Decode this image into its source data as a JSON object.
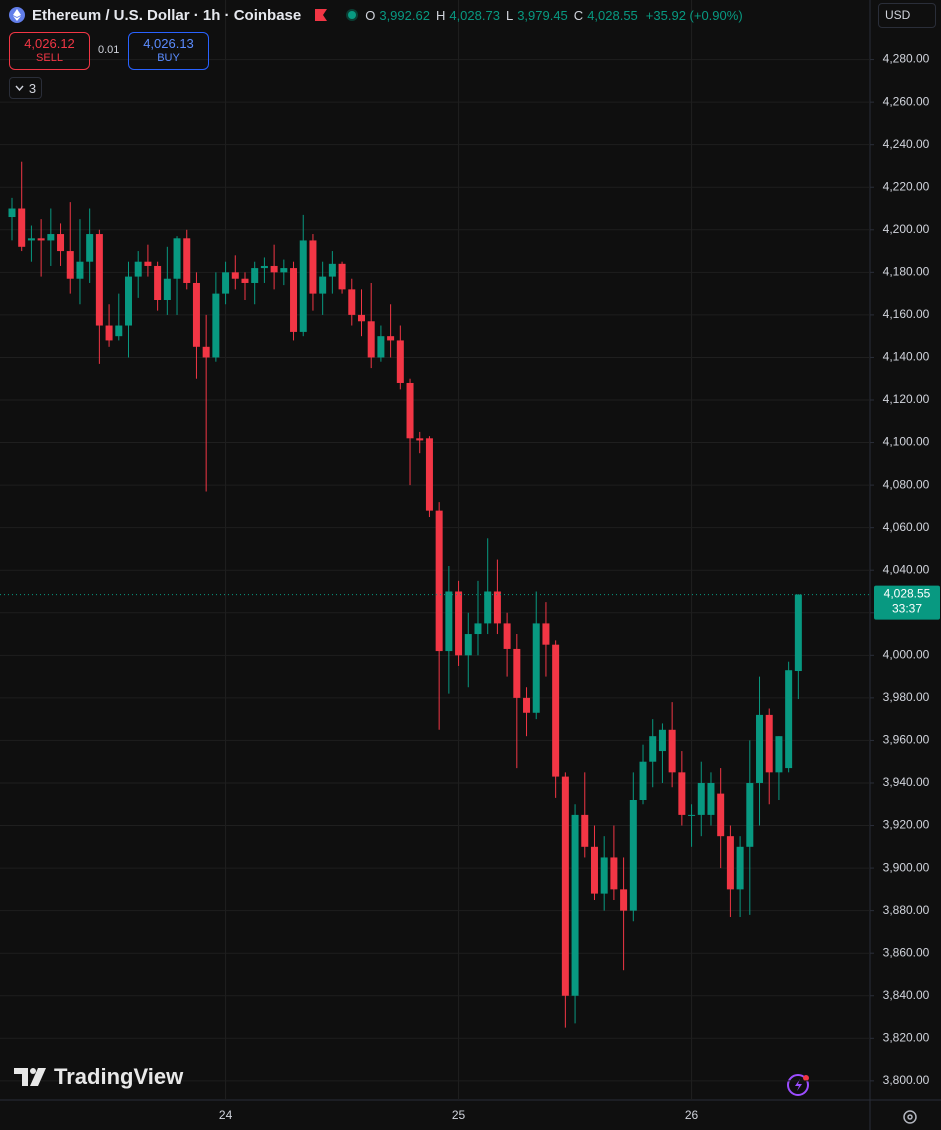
{
  "header": {
    "symbol": "Ethereum / U.S. Dollar · 1h · Coinbase",
    "ohlc": [
      {
        "key": "O",
        "value": "3,992.62"
      },
      {
        "key": "H",
        "value": "4,028.73"
      },
      {
        "key": "L",
        "value": "3,979.45"
      },
      {
        "key": "C",
        "value": "4,028.55"
      }
    ],
    "change": "+35.92 (+0.90%)"
  },
  "trade": {
    "sell_price": "4,026.12",
    "sell": "SELL",
    "quantity": "0.01",
    "buy_price": "4,026.13",
    "buy": "BUY"
  },
  "indicators_count": "3",
  "currency": "USD",
  "brand": "TradingView",
  "chart_data": {
    "type": "candlestick",
    "categories": [
      null,
      null,
      null,
      null,
      null,
      null,
      null,
      null,
      null,
      null,
      null,
      null,
      null,
      null,
      null,
      null,
      null,
      null,
      null,
      null,
      null,
      null,
      "24",
      null,
      null,
      null,
      null,
      null,
      null,
      null,
      null,
      null,
      null,
      null,
      null,
      null,
      null,
      null,
      null,
      null,
      null,
      null,
      null,
      null,
      null,
      null,
      "25",
      null,
      null,
      null,
      null,
      null,
      null,
      null,
      null,
      null,
      null,
      null,
      null,
      null,
      null,
      null,
      null,
      null,
      null,
      null,
      null,
      null,
      null,
      null,
      "26",
      null,
      null,
      null,
      null,
      null,
      null,
      null,
      null,
      null,
      null,
      null
    ],
    "open": [
      4206,
      4210,
      4195,
      4196,
      4195,
      4198,
      4190,
      4177,
      4185,
      4198,
      4155,
      4150,
      4155,
      4178,
      4185,
      4183,
      4167,
      4177,
      4196,
      4175,
      4145,
      4140,
      4170,
      4180,
      4177,
      4175,
      4182,
      4183,
      4180,
      4182,
      4152,
      4195,
      4170,
      4178,
      4184,
      4172,
      4160,
      4157,
      4140,
      4150,
      4148,
      4128,
      4102,
      4102,
      4068,
      4002,
      4030,
      4000,
      4010,
      4015,
      4030,
      4015,
      4003,
      3980,
      3973,
      4015,
      4005,
      3943,
      3840,
      3925,
      3910,
      3888,
      3905,
      3890,
      3880,
      3932,
      3950,
      3955,
      3965,
      3945,
      3925,
      3925,
      3925,
      3935,
      3915,
      3890,
      3910,
      3940,
      3972,
      3945,
      3947,
      3992.62
    ],
    "high": [
      4215,
      4232,
      4202,
      4205,
      4210,
      4203,
      4213,
      4205,
      4210,
      4200,
      4165,
      4170,
      4185,
      4190,
      4193,
      4185,
      4192,
      4197,
      4200,
      4180,
      4160,
      4180,
      4185,
      4188,
      4180,
      4185,
      4187,
      4193,
      4186,
      4185,
      4207,
      4198,
      4185,
      4190,
      4185,
      4177,
      4172,
      4175,
      4155,
      4165,
      4155,
      4130,
      4105,
      4103,
      4072,
      4042,
      4035,
      4020,
      4035,
      4055,
      4045,
      4020,
      4010,
      3985,
      4030,
      4025,
      4007,
      3945,
      3930,
      3945,
      3920,
      3915,
      3920,
      3905,
      3945,
      3958,
      3970,
      3968,
      3978,
      3955,
      3930,
      3950,
      3945,
      3947,
      3920,
      3915,
      3960,
      3990,
      3975,
      3962,
      3997,
      4028.73
    ],
    "low": [
      4195,
      4190,
      4185,
      4178,
      4183,
      4183,
      4170,
      4165,
      4175,
      4137,
      4145,
      4148,
      4140,
      4168,
      4178,
      4162,
      4160,
      4160,
      4172,
      4130,
      4077,
      4138,
      4165,
      4172,
      4167,
      4165,
      4175,
      4172,
      4174,
      4148,
      4150,
      4162,
      4160,
      4170,
      4170,
      4155,
      4150,
      4135,
      4138,
      4140,
      4125,
      4080,
      4095,
      4065,
      3965,
      3982,
      3995,
      3985,
      4000,
      4010,
      4010,
      3990,
      3947,
      3962,
      3970,
      3990,
      3933,
      3825,
      3827,
      3905,
      3885,
      3880,
      3885,
      3852,
      3875,
      3930,
      3938,
      3940,
      3938,
      3920,
      3910,
      3915,
      3920,
      3900,
      3877,
      3877,
      3878,
      3920,
      3930,
      3932,
      3945,
      3979.45
    ],
    "close": [
      4210,
      4192,
      4196,
      4195,
      4198,
      4190,
      4177,
      4185,
      4198,
      4155,
      4148,
      4155,
      4178,
      4185,
      4183,
      4167,
      4177,
      4196,
      4175,
      4145,
      4140,
      4170,
      4180,
      4177,
      4175,
      4182,
      4183,
      4180,
      4182,
      4152,
      4195,
      4170,
      4178,
      4184,
      4172,
      4160,
      4157,
      4140,
      4150,
      4148,
      4128,
      4102,
      4101,
      4068,
      4002,
      4030,
      4000,
      4010,
      4015,
      4030,
      4015,
      4003,
      3980,
      3973,
      4015,
      4005,
      3943,
      3840,
      3925,
      3910,
      3888,
      3905,
      3890,
      3880,
      3932,
      3950,
      3962,
      3965,
      3945,
      3925,
      3925,
      3940,
      3940,
      3915,
      3890,
      3910,
      3940,
      3972,
      3945,
      3962,
      3993,
      4028.55
    ],
    "colors": {
      "up": "#089981",
      "down": "#f23645"
    },
    "ylim": [
      3791,
      4308
    ],
    "yticks": [
      {
        "value": 3800,
        "label": "3,800.00"
      },
      {
        "value": 3820,
        "label": "3,820.00"
      },
      {
        "value": 3840,
        "label": "3,840.00"
      },
      {
        "value": 3860,
        "label": "3,860.00"
      },
      {
        "value": 3880,
        "label": "3,880.00"
      },
      {
        "value": 3900,
        "label": "3,900.00"
      },
      {
        "value": 3920,
        "label": "3,920.00"
      },
      {
        "value": 3940,
        "label": "3,940.00"
      },
      {
        "value": 3960,
        "label": "3,960.00"
      },
      {
        "value": 3980,
        "label": "3,980.00"
      },
      {
        "value": 4000,
        "label": "4,000.00"
      },
      {
        "value": 4020,
        "label": "4,020.00"
      },
      {
        "value": 4040,
        "label": "4,040.00"
      },
      {
        "value": 4060,
        "label": "4,060.00"
      },
      {
        "value": 4080,
        "label": "4,080.00"
      },
      {
        "value": 4100,
        "label": "4,100.00"
      },
      {
        "value": 4120,
        "label": "4,120.00"
      },
      {
        "value": 4140,
        "label": "4,140.00"
      },
      {
        "value": 4160,
        "label": "4,160.00"
      },
      {
        "value": 4180,
        "label": "4,180.00"
      },
      {
        "value": 4200,
        "label": "4,200.00"
      },
      {
        "value": 4220,
        "label": "4,220.00"
      },
      {
        "value": 4240,
        "label": "4,240.00"
      },
      {
        "value": 4260,
        "label": "4,260.00"
      },
      {
        "value": 4280,
        "label": "4,280.00"
      }
    ],
    "grid": true,
    "last_price_label": "4,028.55",
    "countdown": "33:37"
  }
}
